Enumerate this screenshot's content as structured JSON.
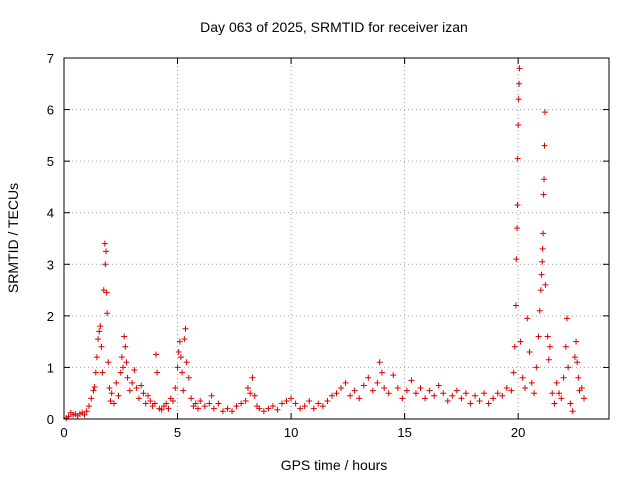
{
  "chart_data": {
    "type": "scatter",
    "title": "Day 063 of 2025, SRMTID for receiver izan",
    "xlabel": "GPS time / hours",
    "ylabel": "SRMTID / TECUs",
    "xlim": [
      0,
      24
    ],
    "ylim": [
      0,
      7
    ],
    "xticks": [
      0,
      5,
      10,
      15,
      20
    ],
    "yticks": [
      0,
      1,
      2,
      3,
      4,
      5,
      6,
      7
    ],
    "grid": true,
    "marker": "+",
    "series": [
      {
        "name": "SRMTID",
        "color": "#dd0000",
        "points": [
          [
            0.1,
            0.02
          ],
          [
            0.2,
            0.05
          ],
          [
            0.3,
            0.12
          ],
          [
            0.4,
            0.08
          ],
          [
            0.5,
            0.1
          ],
          [
            0.6,
            0.06
          ],
          [
            0.7,
            0.1
          ],
          [
            0.8,
            0.12
          ],
          [
            0.9,
            0.08
          ],
          [
            1.0,
            0.15
          ],
          [
            1.1,
            0.25
          ],
          [
            1.2,
            0.4
          ],
          [
            1.3,
            0.55
          ],
          [
            1.35,
            0.62
          ],
          [
            1.4,
            0.9
          ],
          [
            1.45,
            1.2
          ],
          [
            1.5,
            1.55
          ],
          [
            1.55,
            1.7
          ],
          [
            1.6,
            1.8
          ],
          [
            1.65,
            1.4
          ],
          [
            1.7,
            0.9
          ],
          [
            1.75,
            2.5
          ],
          [
            1.8,
            3.4
          ],
          [
            1.82,
            3.0
          ],
          [
            1.85,
            3.25
          ],
          [
            1.88,
            2.45
          ],
          [
            1.9,
            2.05
          ],
          [
            1.95,
            1.1
          ],
          [
            2.0,
            0.6
          ],
          [
            2.05,
            0.35
          ],
          [
            2.1,
            0.5
          ],
          [
            2.2,
            0.3
          ],
          [
            2.3,
            0.7
          ],
          [
            2.4,
            0.45
          ],
          [
            2.5,
            0.9
          ],
          [
            2.55,
            1.2
          ],
          [
            2.6,
            1.0
          ],
          [
            2.65,
            1.6
          ],
          [
            2.7,
            1.4
          ],
          [
            2.75,
            1.1
          ],
          [
            2.8,
            0.8
          ],
          [
            2.9,
            0.55
          ],
          [
            3.0,
            0.7
          ],
          [
            3.1,
            0.95
          ],
          [
            3.2,
            0.6
          ],
          [
            3.3,
            0.4
          ],
          [
            3.4,
            0.65
          ],
          [
            3.5,
            0.5
          ],
          [
            3.6,
            0.3
          ],
          [
            3.7,
            0.45
          ],
          [
            3.8,
            0.35
          ],
          [
            3.9,
            0.25
          ],
          [
            4.0,
            0.3
          ],
          [
            4.05,
            1.25
          ],
          [
            4.1,
            0.9
          ],
          [
            4.2,
            0.2
          ],
          [
            4.3,
            0.18
          ],
          [
            4.4,
            0.25
          ],
          [
            4.5,
            0.3
          ],
          [
            4.6,
            0.2
          ],
          [
            4.7,
            0.4
          ],
          [
            4.8,
            0.35
          ],
          [
            4.9,
            0.6
          ],
          [
            5.0,
            1.0
          ],
          [
            5.05,
            1.3
          ],
          [
            5.1,
            1.5
          ],
          [
            5.15,
            1.2
          ],
          [
            5.2,
            0.9
          ],
          [
            5.25,
            0.55
          ],
          [
            5.3,
            1.55
          ],
          [
            5.35,
            1.75
          ],
          [
            5.4,
            1.1
          ],
          [
            5.5,
            0.8
          ],
          [
            5.6,
            0.4
          ],
          [
            5.7,
            0.25
          ],
          [
            5.8,
            0.3
          ],
          [
            5.9,
            0.2
          ],
          [
            6.0,
            0.35
          ],
          [
            6.2,
            0.25
          ],
          [
            6.4,
            0.3
          ],
          [
            6.5,
            0.45
          ],
          [
            6.6,
            0.2
          ],
          [
            6.8,
            0.3
          ],
          [
            7.0,
            0.15
          ],
          [
            7.2,
            0.2
          ],
          [
            7.4,
            0.15
          ],
          [
            7.6,
            0.25
          ],
          [
            7.8,
            0.3
          ],
          [
            8.0,
            0.35
          ],
          [
            8.1,
            0.6
          ],
          [
            8.2,
            0.5
          ],
          [
            8.3,
            0.8
          ],
          [
            8.4,
            0.45
          ],
          [
            8.5,
            0.25
          ],
          [
            8.6,
            0.2
          ],
          [
            8.8,
            0.15
          ],
          [
            9.0,
            0.2
          ],
          [
            9.2,
            0.25
          ],
          [
            9.4,
            0.18
          ],
          [
            9.6,
            0.3
          ],
          [
            9.8,
            0.35
          ],
          [
            10.0,
            0.4
          ],
          [
            10.2,
            0.3
          ],
          [
            10.4,
            0.2
          ],
          [
            10.6,
            0.25
          ],
          [
            10.8,
            0.35
          ],
          [
            11.0,
            0.2
          ],
          [
            11.2,
            0.3
          ],
          [
            11.4,
            0.25
          ],
          [
            11.6,
            0.35
          ],
          [
            11.8,
            0.45
          ],
          [
            12.0,
            0.5
          ],
          [
            12.2,
            0.6
          ],
          [
            12.4,
            0.7
          ],
          [
            12.6,
            0.45
          ],
          [
            12.8,
            0.55
          ],
          [
            13.0,
            0.4
          ],
          [
            13.2,
            0.65
          ],
          [
            13.4,
            0.8
          ],
          [
            13.6,
            0.55
          ],
          [
            13.8,
            0.7
          ],
          [
            13.9,
            1.1
          ],
          [
            14.0,
            0.9
          ],
          [
            14.1,
            0.6
          ],
          [
            14.3,
            0.5
          ],
          [
            14.5,
            0.85
          ],
          [
            14.7,
            0.6
          ],
          [
            14.9,
            0.4
          ],
          [
            15.1,
            0.55
          ],
          [
            15.3,
            0.75
          ],
          [
            15.5,
            0.5
          ],
          [
            15.7,
            0.6
          ],
          [
            15.9,
            0.4
          ],
          [
            16.1,
            0.55
          ],
          [
            16.3,
            0.45
          ],
          [
            16.5,
            0.65
          ],
          [
            16.7,
            0.5
          ],
          [
            16.9,
            0.35
          ],
          [
            17.1,
            0.45
          ],
          [
            17.3,
            0.55
          ],
          [
            17.5,
            0.4
          ],
          [
            17.7,
            0.5
          ],
          [
            17.9,
            0.3
          ],
          [
            18.1,
            0.45
          ],
          [
            18.3,
            0.35
          ],
          [
            18.5,
            0.5
          ],
          [
            18.7,
            0.3
          ],
          [
            18.9,
            0.4
          ],
          [
            19.1,
            0.5
          ],
          [
            19.3,
            0.45
          ],
          [
            19.5,
            0.6
          ],
          [
            19.7,
            0.55
          ],
          [
            19.8,
            0.9
          ],
          [
            19.85,
            1.4
          ],
          [
            19.9,
            2.2
          ],
          [
            19.92,
            3.1
          ],
          [
            19.95,
            3.7
          ],
          [
            19.97,
            4.15
          ],
          [
            19.98,
            5.05
          ],
          [
            20.0,
            5.7
          ],
          [
            20.02,
            6.2
          ],
          [
            20.04,
            6.5
          ],
          [
            20.06,
            6.8
          ],
          [
            20.1,
            1.5
          ],
          [
            20.2,
            0.8
          ],
          [
            20.3,
            0.6
          ],
          [
            20.4,
            1.95
          ],
          [
            20.5,
            1.3
          ],
          [
            20.6,
            0.7
          ],
          [
            20.7,
            0.5
          ],
          [
            20.8,
            1.0
          ],
          [
            20.9,
            1.6
          ],
          [
            20.95,
            2.1
          ],
          [
            21.0,
            2.5
          ],
          [
            21.03,
            2.8
          ],
          [
            21.06,
            3.05
          ],
          [
            21.08,
            3.3
          ],
          [
            21.1,
            3.6
          ],
          [
            21.12,
            4.35
          ],
          [
            21.14,
            4.65
          ],
          [
            21.16,
            5.3
          ],
          [
            21.18,
            5.95
          ],
          [
            21.2,
            2.6
          ],
          [
            21.3,
            1.6
          ],
          [
            21.35,
            1.15
          ],
          [
            21.4,
            1.4
          ],
          [
            21.5,
            0.5
          ],
          [
            21.6,
            0.3
          ],
          [
            21.7,
            0.7
          ],
          [
            21.8,
            0.5
          ],
          [
            21.9,
            0.4
          ],
          [
            22.0,
            0.8
          ],
          [
            22.1,
            1.4
          ],
          [
            22.15,
            1.95
          ],
          [
            22.2,
            1.0
          ],
          [
            22.3,
            0.3
          ],
          [
            22.4,
            0.15
          ],
          [
            22.5,
            1.2
          ],
          [
            22.55,
            1.5
          ],
          [
            22.6,
            1.1
          ],
          [
            22.65,
            0.8
          ],
          [
            22.7,
            0.55
          ],
          [
            22.8,
            0.6
          ],
          [
            22.9,
            0.4
          ]
        ]
      }
    ]
  }
}
